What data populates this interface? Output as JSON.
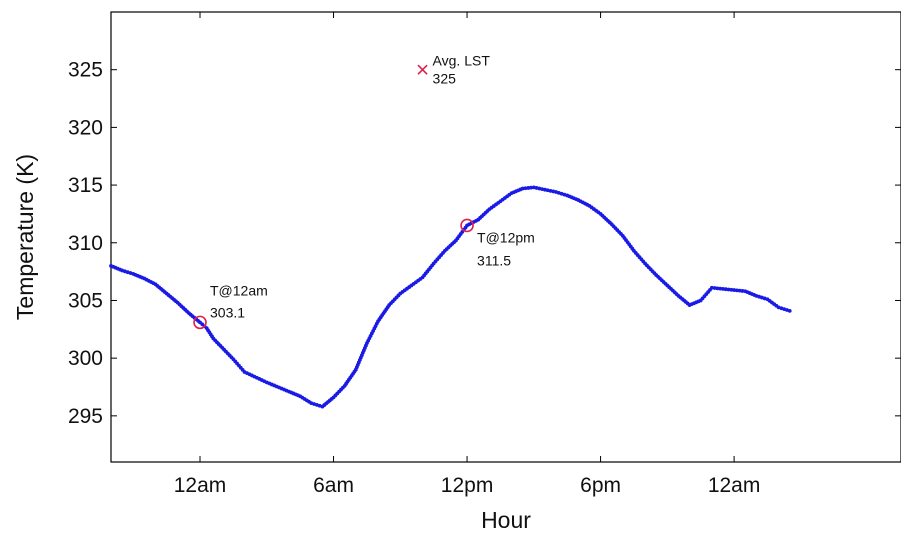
{
  "chart_data": {
    "type": "scatter",
    "xlabel": "Hour",
    "ylabel": "Temperature (K)",
    "xticks": [
      {
        "x": 0,
        "label": "12am"
      },
      {
        "x": 6,
        "label": "6am"
      },
      {
        "x": 12,
        "label": "12pm"
      },
      {
        "x": 18,
        "label": "6pm"
      },
      {
        "x": 24,
        "label": "12am"
      }
    ],
    "xlim": [
      -4,
      31.5
    ],
    "ylim": [
      291,
      330
    ],
    "yticks": [
      295,
      300,
      305,
      310,
      315,
      320,
      325
    ],
    "grid": false,
    "colors": {
      "series": "#1a1ae6",
      "marker": "#e0204a"
    },
    "series": [
      {
        "values": [
          [
            -4,
            308.0
          ],
          [
            -3.5,
            307.6
          ],
          [
            -3,
            307.3
          ],
          [
            -2.5,
            306.9
          ],
          [
            -2,
            306.4
          ],
          [
            -1.5,
            305.6
          ],
          [
            -1,
            304.8
          ],
          [
            -0.5,
            303.9
          ],
          [
            0,
            303.1
          ],
          [
            0.3,
            302.6
          ],
          [
            0.6,
            301.7
          ],
          [
            1,
            300.9
          ],
          [
            1.5,
            299.9
          ],
          [
            2,
            298.8
          ],
          [
            3,
            297.9
          ],
          [
            4,
            297.1
          ],
          [
            4.5,
            296.7
          ],
          [
            5,
            296.1
          ],
          [
            5.5,
            295.8
          ],
          [
            6,
            296.6
          ],
          [
            6.5,
            297.6
          ],
          [
            7,
            299.0
          ],
          [
            7.5,
            301.3
          ],
          [
            8,
            303.2
          ],
          [
            8.5,
            304.6
          ],
          [
            9,
            305.6
          ],
          [
            9.5,
            306.3
          ],
          [
            10,
            307.0
          ],
          [
            10.5,
            308.2
          ],
          [
            11,
            309.3
          ],
          [
            11.5,
            310.2
          ],
          [
            12,
            311.5
          ],
          [
            12.5,
            312.0
          ],
          [
            13,
            312.9
          ],
          [
            13.5,
            313.6
          ],
          [
            14,
            314.3
          ],
          [
            14.5,
            314.7
          ],
          [
            15,
            314.8
          ],
          [
            15.5,
            314.6
          ],
          [
            16,
            314.4
          ],
          [
            16.5,
            314.1
          ],
          [
            17,
            313.7
          ],
          [
            17.5,
            313.2
          ],
          [
            18,
            312.5
          ],
          [
            18.5,
            311.6
          ],
          [
            19,
            310.6
          ],
          [
            19.5,
            309.3
          ],
          [
            20,
            308.2
          ],
          [
            20.5,
            307.2
          ],
          [
            21,
            306.3
          ],
          [
            21.5,
            305.4
          ],
          [
            22,
            304.6
          ],
          [
            22.5,
            305.0
          ],
          [
            23,
            306.1
          ],
          [
            23.5,
            306.0
          ],
          [
            24,
            305.9
          ],
          [
            24.5,
            305.8
          ],
          [
            25,
            305.4
          ],
          [
            25.5,
            305.1
          ],
          [
            26,
            304.4
          ],
          [
            26.5,
            304.1
          ]
        ]
      }
    ],
    "annotations": [
      {
        "label": "T@12am",
        "value": "303.1",
        "x": 0,
        "y": 303.1,
        "marker": "circle"
      },
      {
        "label": "T@12pm",
        "value": "311.5",
        "x": 12,
        "y": 311.5,
        "marker": "circle"
      },
      {
        "label": "Avg. LST",
        "value": "325",
        "x": 10,
        "y": 325,
        "marker": "x"
      }
    ]
  }
}
